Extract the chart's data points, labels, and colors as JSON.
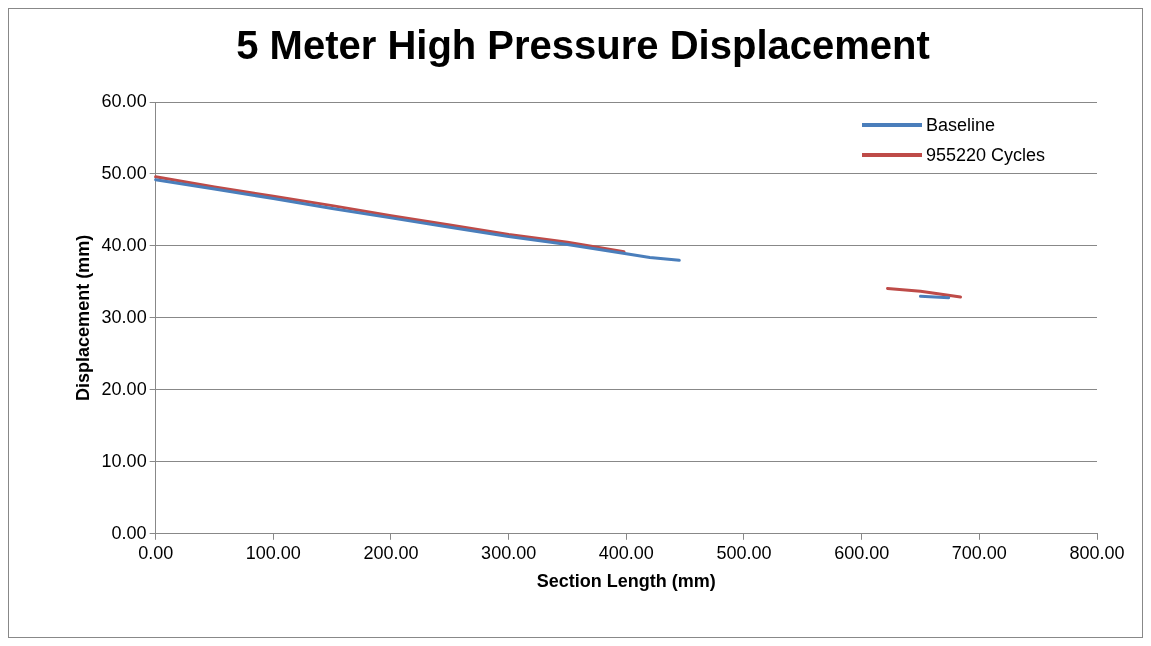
{
  "chart_data": {
    "type": "line",
    "title": "5 Meter High Pressure Displacement",
    "xlabel": "Section Length (mm)",
    "ylabel": "Displacement (mm)",
    "series": [
      {
        "name": "Baseline",
        "color": "#4a7ebb",
        "x": [
          0,
          50,
          100,
          150,
          200,
          250,
          300,
          350,
          400,
          420,
          445,
          550,
          650,
          674
        ],
        "values": [
          49.2,
          47.9,
          46.6,
          45.2,
          43.9,
          42.6,
          41.3,
          40.2,
          38.9,
          38.4,
          38.0,
          null,
          33.0,
          32.8
        ]
      },
      {
        "name": "955220 Cycles",
        "color": "#be4b48",
        "x": [
          0,
          50,
          100,
          150,
          200,
          250,
          300,
          350,
          398,
          500,
          622,
          650,
          684
        ],
        "values": [
          49.6,
          48.2,
          46.9,
          45.6,
          44.2,
          42.9,
          41.6,
          40.5,
          39.2,
          null,
          34.1,
          33.7,
          32.9
        ]
      }
    ],
    "xlim": [
      0,
      800
    ],
    "xticks": [
      {
        "value": 0,
        "label": "0.00"
      },
      {
        "value": 100,
        "label": "100.00"
      },
      {
        "value": 200,
        "label": "200.00"
      },
      {
        "value": 300,
        "label": "300.00"
      },
      {
        "value": 400,
        "label": "400.00"
      },
      {
        "value": 500,
        "label": "500.00"
      },
      {
        "value": 600,
        "label": "600.00"
      },
      {
        "value": 700,
        "label": "700.00"
      },
      {
        "value": 800,
        "label": "800.00"
      }
    ],
    "ylim": [
      0,
      60
    ],
    "yticks": [
      {
        "value": 0,
        "label": "0.00"
      },
      {
        "value": 10,
        "label": "10.00"
      },
      {
        "value": 20,
        "label": "20.00"
      },
      {
        "value": 30,
        "label": "30.00"
      },
      {
        "value": 40,
        "label": "40.00"
      },
      {
        "value": 50,
        "label": "50.00"
      },
      {
        "value": 60,
        "label": "60.00"
      }
    ],
    "grid": "y",
    "legend": "top right",
    "marker": "none",
    "line_style": "solid"
  }
}
